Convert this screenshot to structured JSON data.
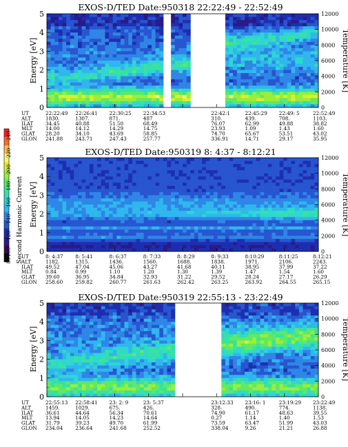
{
  "colors": {
    "scale": [
      "#0a0a0a",
      "#3d0a5a",
      "#2a1b86",
      "#1d2fb0",
      "#2855d0",
      "#2f86e6",
      "#2fb7ee",
      "#2fd7d0",
      "#38e39c",
      "#5fe966",
      "#9aee3a",
      "#d9f02a",
      "#fff27a",
      "#ffc04a",
      "#ff6a2a",
      "#ff1f1f"
    ],
    "line": "#000000"
  },
  "colorbar": {
    "label": "Second Harmonic Current",
    "ticks": [
      "80",
      "100",
      "120",
      "140",
      "160",
      "180",
      "200",
      "220",
      "240"
    ]
  },
  "chart_data": [
    {
      "type": "heatmap",
      "title": "EXOS-D/TED   Date:950318   22:22:49 - 22:52:49",
      "ylabel": "Energy [eV]",
      "y2label": "Temperature [K]",
      "ylim": [
        0,
        5
      ],
      "y2lim": [
        0,
        12000
      ],
      "yticks": [
        "0",
        "1",
        "2",
        "3",
        "4",
        "5"
      ],
      "y2ticks": [
        "0",
        "2000",
        "4000",
        "6000",
        "8000",
        "10000",
        "12000"
      ],
      "gaps": [
        [
          0.43,
          0.46
        ],
        [
          0.535,
          0.66
        ]
      ],
      "rows": [
        "UT",
        "ALT",
        "ILAT",
        "MLT",
        "GLAT",
        "GLON"
      ],
      "columns": [
        {
          "UT": "22:22:49",
          "ALT": "1830.",
          "ILAT": "34.45",
          "MLT": "14.00",
          "GLAT": "28.20",
          "GLON": "241.88"
        },
        {
          "UT": "22:26:41",
          "ALT": "1307.",
          "ILAT": "40.88",
          "MLT": "14.12",
          "GLAT": "34.10",
          "GLON": "243.71"
        },
        {
          "UT": "22:30:25",
          "ALT": "871.",
          "ILAT": "51.50",
          "MLT": "14.29",
          "GLAT": "43.69",
          "GLON": "247.43"
        },
        {
          "UT": "22:34:53",
          "ALT": "487",
          "ILAT": "68.49",
          "MLT": "14.75",
          "GLAT": "58.85",
          "GLON": "257.77"
        },
        {
          "UT": "",
          "ALT": "",
          "ILAT": "",
          "MLT": "",
          "GLAT": "",
          "GLON": ""
        },
        {
          "UT": "22:42:1",
          "ALT": "310.",
          "ILAT": "76.07",
          "MLT": "23.93",
          "GLAT": "74.70",
          "GLON": "336.91"
        },
        {
          "UT": "22:45:29",
          "ALT": "439.",
          "ILAT": "62.99",
          "MLT": "1.09",
          "GLAT": "65.67",
          "GLON": "14.71"
        },
        {
          "UT": "22:49: 5",
          "ALT": "708.",
          "ILAT": "49.88",
          "MLT": "1.43",
          "GLAT": "53.51",
          "GLON": "29.17"
        },
        {
          "UT": "22:52:49",
          "ALT": "1103.",
          "ILAT": "38.82",
          "MLT": "1.60",
          "GLAT": "43.02",
          "GLON": "35.95"
        }
      ]
    },
    {
      "type": "heatmap",
      "title": "EXOS-D/TED   Date:950319   8: 4:37 - 8:12:21",
      "ylabel": "Energy [eV]",
      "y2label": "Temperature [K]",
      "ylim": [
        0,
        5
      ],
      "y2lim": [
        0,
        12000
      ],
      "yticks": [
        "0",
        "1",
        "2",
        "3",
        "4",
        "5"
      ],
      "y2ticks": [
        "0",
        "2000",
        "4000",
        "6000",
        "8000",
        "10000",
        "12000"
      ],
      "gaps": [],
      "rows": [
        "UT",
        "ALT",
        "ILAT",
        "MLT",
        "GLAT",
        "GLON"
      ],
      "columns": [
        {
          "UT": "8: 4:37",
          "ALT": "1182.",
          "ILAT": "49.52",
          "MLT": "0.84",
          "GLAT": "39.60",
          "GLON": "258.60"
        },
        {
          "UT": "8: 5:41",
          "ALT": "1315.",
          "ILAT": "47.04",
          "MLT": "0.99",
          "GLAT": "36.95",
          "GLON": "259.82"
        },
        {
          "UT": "8: 6:37",
          "ALT": "1436.",
          "ILAT": "45.06",
          "MLT": "1.10",
          "GLAT": "34.84",
          "GLON": "260.77"
        },
        {
          "UT": "8: 7:33",
          "ALT": "1560.",
          "ILAT": "43.27",
          "MLT": "1.20",
          "GLAT": "32.93",
          "GLON": "261.63"
        },
        {
          "UT": "8: 8:29",
          "ALT": "1688.",
          "ILAT": "41.68",
          "MLT": "1.30",
          "GLAT": "31.22",
          "GLON": "262.42"
        },
        {
          "UT": "8: 9:33",
          "ALT": "1838.",
          "ILAT": "40.11",
          "MLT": "1.39",
          "GLAT": "29.52",
          "GLON": "263.25"
        },
        {
          "UT": "8:10:29",
          "ALT": "1971.",
          "ILAT": "38.95",
          "MLT": "1.47",
          "GLAT": "28.24",
          "GLON": "263.92"
        },
        {
          "UT": "8:11:25",
          "ALT": "2106.",
          "ILAT": "37.99",
          "MLT": "1.54",
          "GLAT": "27.17",
          "GLON": "264.55"
        },
        {
          "UT": "8:12:21",
          "ALT": "2243.",
          "ILAT": "37.22",
          "MLT": "1.60",
          "GLAT": "26.29",
          "GLON": "265.15"
        }
      ]
    },
    {
      "type": "heatmap",
      "title": "EXOS-D/TED   Date:950319   22:55:13 - 23:22:49",
      "ylabel": "Energy [eV]",
      "y2label": "Temperature [K]",
      "ylim": [
        0,
        5
      ],
      "y2lim": [
        0,
        12000
      ],
      "yticks": [
        "0",
        "1",
        "2",
        "3",
        "4",
        "5"
      ],
      "y2ticks": [
        "0",
        "2000",
        "4000",
        "6000",
        "8000",
        "10000",
        "12000"
      ],
      "gaps": [
        [
          0.475,
          0.645
        ]
      ],
      "rows": [
        "UT",
        "ALT",
        "ILAT",
        "MLT",
        "GLAT",
        "GLON"
      ],
      "columns": [
        {
          "UT": "22:55:13",
          "ALT": "1459.",
          "ILAT": "36.61",
          "MLT": "13.94",
          "GLAT": "31.79",
          "GLON": "234.04"
        },
        {
          "UT": "22:58:41",
          "ALT": "1029.",
          "ILAT": "44.64",
          "MLT": "14.05",
          "GLAT": "39.23",
          "GLON": "236.64"
        },
        {
          "UT": "23: 2: 9",
          "ALT": "675.",
          "ILAT": "56.34",
          "MLT": "14.23",
          "GLAT": "49.70",
          "GLON": "241.68"
        },
        {
          "UT": "23: 5:37",
          "ALT": "426.",
          "ILAT": "70.61",
          "MLT": "14.64",
          "GLAT": "61.99",
          "GLON": "252.52"
        },
        {
          "UT": "",
          "ALT": "",
          "ILAT": "",
          "MLT": "",
          "GLAT": "",
          "GLON": ""
        },
        {
          "UT": "23:12:33",
          "ALT": "328.",
          "ILAT": "74.90",
          "MLT": "0.27",
          "GLAT": "73.59",
          "GLON": "338.04"
        },
        {
          "UT": "23:16: 1",
          "ALT": "490.",
          "ILAT": "61.17",
          "MLT": "1.14",
          "GLAT": "63.47",
          "GLON": "9.26"
        },
        {
          "UT": "23:19:29",
          "ALT": "774.",
          "ILAT": "48.63",
          "MLT": "1.40",
          "GLAT": "51.99",
          "GLON": "21.21"
        },
        {
          "UT": "23:22:49",
          "ALT": "1138.",
          "ILAT": "39.55",
          "MLT": "1.53",
          "GLAT": "43.03",
          "GLON": "26.88"
        }
      ]
    }
  ]
}
